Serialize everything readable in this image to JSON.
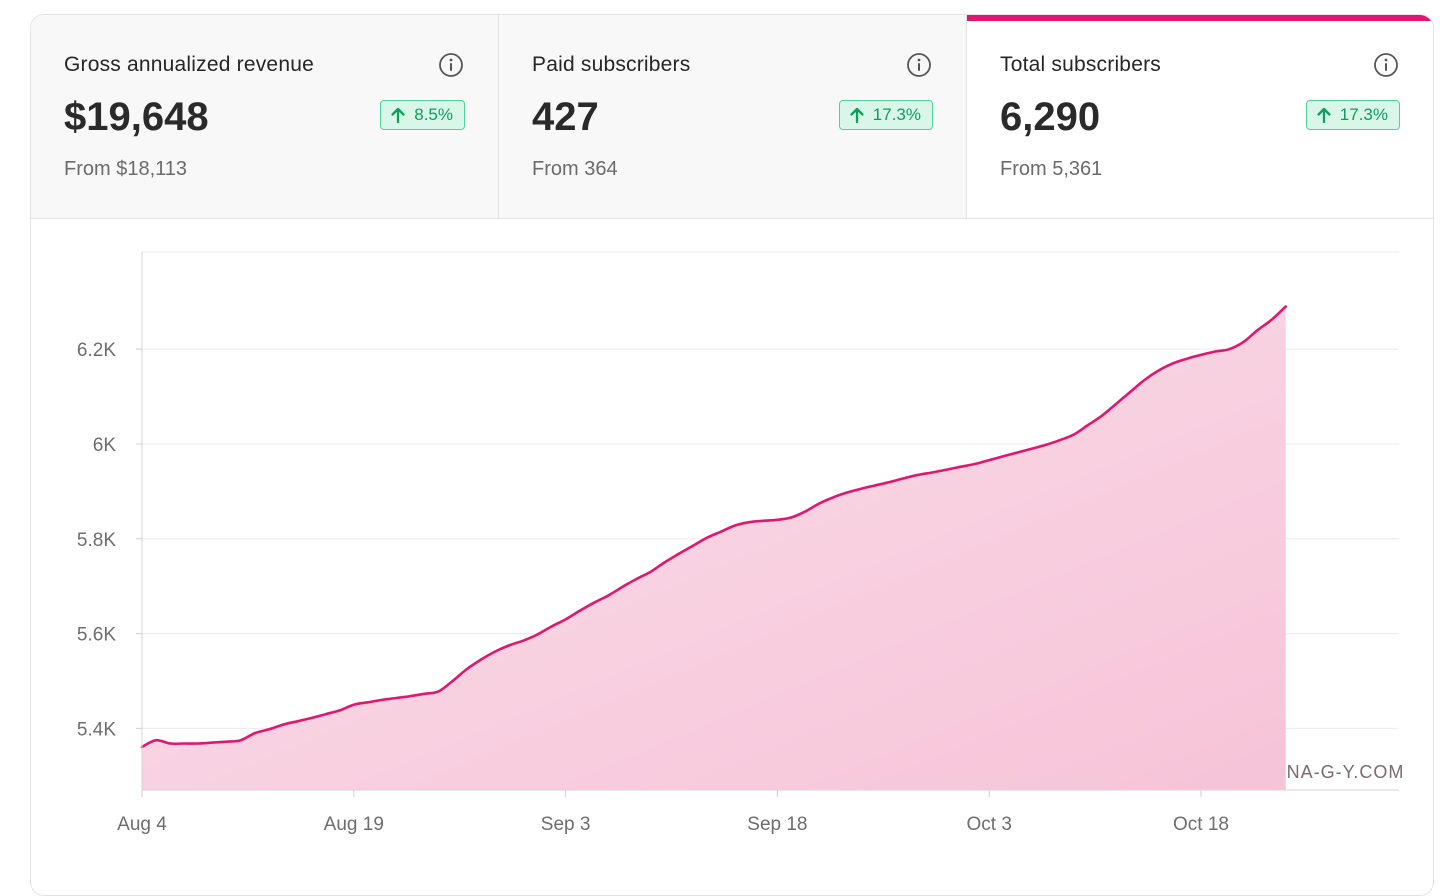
{
  "tiles": [
    {
      "title": "Gross annualized revenue",
      "value": "$19,648",
      "change": "8.5%",
      "from": "From $18,113",
      "active": false
    },
    {
      "title": "Paid subscribers",
      "value": "427",
      "change": "17.3%",
      "from": "From 364",
      "active": false
    },
    {
      "title": "Total subscribers",
      "value": "6,290",
      "change": "17.3%",
      "from": "From 5,361",
      "active": true
    }
  ],
  "icons": {
    "info": "info-circle-icon",
    "trend": "arrow-up-icon",
    "watermark": "bookmark-icon"
  },
  "colors": {
    "accent": "#e0176e",
    "area_fill": "#f7c5d9",
    "badge_bg": "#d8f7e8",
    "badge_text": "#0f9d5a"
  },
  "watermark": "WWW.YANA-G-Y.COM",
  "chart_data": {
    "type": "area",
    "title": "",
    "xlabel": "",
    "ylabel": "",
    "ylim": [
      5270,
      6405
    ],
    "xlim": [
      "Aug 4",
      "Nov 1"
    ],
    "grid": true,
    "legend": "none",
    "x_ticks": [
      "Aug 4",
      "Aug 19",
      "Sep 3",
      "Sep 18",
      "Oct 3",
      "Oct 18"
    ],
    "y_ticks": [
      {
        "value": 5400,
        "label": "5.4K"
      },
      {
        "value": 5600,
        "label": "5.6K"
      },
      {
        "value": 5800,
        "label": "5.8K"
      },
      {
        "value": 6000,
        "label": "6K"
      },
      {
        "value": 6200,
        "label": "6.2K"
      }
    ],
    "series": [
      {
        "name": "Total subscribers",
        "x_start": "Aug 4",
        "x_step_days": 1,
        "values": [
          5361,
          5375,
          5368,
          5368,
          5368,
          5370,
          5372,
          5375,
          5390,
          5398,
          5408,
          5415,
          5422,
          5430,
          5438,
          5450,
          5455,
          5460,
          5464,
          5468,
          5473,
          5478,
          5500,
          5525,
          5545,
          5562,
          5575,
          5585,
          5598,
          5615,
          5630,
          5648,
          5665,
          5680,
          5698,
          5715,
          5730,
          5750,
          5768,
          5785,
          5802,
          5815,
          5828,
          5835,
          5838,
          5840,
          5845,
          5858,
          5875,
          5888,
          5898,
          5906,
          5913,
          5920,
          5928,
          5935,
          5940,
          5946,
          5952,
          5958,
          5966,
          5974,
          5982,
          5990,
          5998,
          6008,
          6020,
          6040,
          6060,
          6085,
          6110,
          6135,
          6155,
          6170,
          6180,
          6188,
          6195,
          6200,
          6215,
          6240,
          6262,
          6290
        ]
      }
    ]
  }
}
